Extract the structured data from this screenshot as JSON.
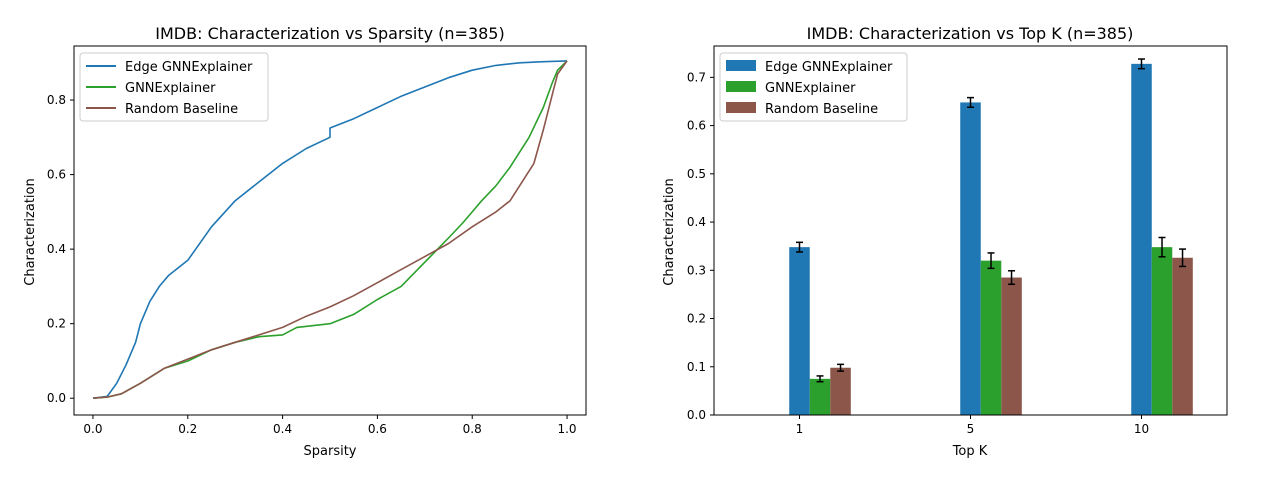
{
  "chart_data": [
    {
      "type": "line",
      "title": "IMDB: Characterization vs Sparsity (n=385)",
      "xlabel": "Sparsity",
      "ylabel": "Characterization",
      "xlim": [
        -0.04,
        1.04
      ],
      "ylim": [
        -0.045,
        0.945
      ],
      "xticks": [
        0.0,
        0.2,
        0.4,
        0.6,
        0.8,
        1.0
      ],
      "xtick_labels": [
        "0.0",
        "0.2",
        "0.4",
        "0.6",
        "0.8",
        "1.0"
      ],
      "yticks": [
        0.0,
        0.2,
        0.4,
        0.6,
        0.8
      ],
      "ytick_labels": [
        "0.0",
        "0.2",
        "0.4",
        "0.6",
        "0.8"
      ],
      "grid": false,
      "legend_position": "upper-left",
      "series": [
        {
          "name": "Edge GNNExplainer",
          "color": "#1f77b4",
          "x": [
            0.0,
            0.03,
            0.05,
            0.07,
            0.09,
            0.1,
            0.12,
            0.14,
            0.16,
            0.2,
            0.25,
            0.3,
            0.35,
            0.4,
            0.45,
            0.5,
            0.5,
            0.55,
            0.6,
            0.65,
            0.7,
            0.75,
            0.8,
            0.85,
            0.9,
            0.95,
            1.0
          ],
          "y": [
            0.0,
            0.005,
            0.04,
            0.09,
            0.15,
            0.2,
            0.26,
            0.3,
            0.33,
            0.37,
            0.46,
            0.53,
            0.58,
            0.63,
            0.67,
            0.7,
            0.725,
            0.75,
            0.78,
            0.81,
            0.835,
            0.86,
            0.88,
            0.893,
            0.9,
            0.903,
            0.905
          ]
        },
        {
          "name": "GNNExplainer",
          "color": "#2ca02c",
          "x": [
            0.0,
            0.03,
            0.06,
            0.1,
            0.15,
            0.2,
            0.25,
            0.3,
            0.35,
            0.4,
            0.43,
            0.5,
            0.55,
            0.6,
            0.65,
            0.7,
            0.75,
            0.78,
            0.8,
            0.82,
            0.85,
            0.88,
            0.9,
            0.92,
            0.95,
            0.97,
            0.98,
            1.0
          ],
          "y": [
            0.0,
            0.003,
            0.012,
            0.04,
            0.08,
            0.1,
            0.13,
            0.15,
            0.165,
            0.17,
            0.19,
            0.2,
            0.225,
            0.265,
            0.3,
            0.365,
            0.43,
            0.47,
            0.5,
            0.53,
            0.57,
            0.62,
            0.66,
            0.7,
            0.78,
            0.85,
            0.88,
            0.905
          ]
        },
        {
          "name": "Random Baseline",
          "color": "#8c564b",
          "x": [
            0.0,
            0.03,
            0.06,
            0.1,
            0.15,
            0.2,
            0.25,
            0.3,
            0.35,
            0.4,
            0.45,
            0.5,
            0.55,
            0.6,
            0.65,
            0.7,
            0.75,
            0.8,
            0.85,
            0.88,
            0.9,
            0.93,
            0.95,
            0.97,
            0.98,
            1.0
          ],
          "y": [
            0.0,
            0.003,
            0.012,
            0.04,
            0.08,
            0.105,
            0.13,
            0.15,
            0.17,
            0.19,
            0.22,
            0.245,
            0.275,
            0.31,
            0.345,
            0.38,
            0.415,
            0.46,
            0.5,
            0.53,
            0.57,
            0.63,
            0.72,
            0.82,
            0.87,
            0.905
          ]
        }
      ]
    },
    {
      "type": "bar",
      "title": "IMDB: Characterization vs Top K (n=385)",
      "xlabel": "Top K",
      "ylabel": "Characterization",
      "categories": [
        "1",
        "5",
        "10"
      ],
      "ylim": [
        0.0,
        0.765
      ],
      "yticks": [
        0.0,
        0.1,
        0.2,
        0.3,
        0.4,
        0.5,
        0.6,
        0.7
      ],
      "ytick_labels": [
        "0.0",
        "0.1",
        "0.2",
        "0.3",
        "0.4",
        "0.5",
        "0.6",
        "0.7"
      ],
      "grid": false,
      "legend_position": "upper-left",
      "error_bars": true,
      "series": [
        {
          "name": "Edge GNNExplainer",
          "color": "#1f77b4",
          "values": [
            0.348,
            0.648,
            0.728
          ],
          "errors": [
            0.01,
            0.01,
            0.01
          ]
        },
        {
          "name": "GNNExplainer",
          "color": "#2ca02c",
          "values": [
            0.075,
            0.32,
            0.348
          ],
          "errors": [
            0.006,
            0.016,
            0.02
          ]
        },
        {
          "name": "Random Baseline",
          "color": "#8c564b",
          "values": [
            0.098,
            0.285,
            0.326
          ],
          "errors": [
            0.007,
            0.014,
            0.018
          ]
        }
      ]
    }
  ]
}
